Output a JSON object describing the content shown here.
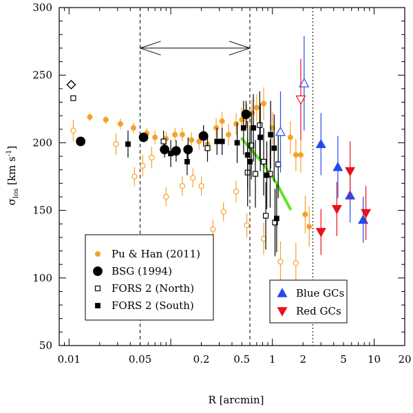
{
  "chart_data": {
    "type": "scatter",
    "xscale": "log",
    "xlim": [
      0.008,
      20
    ],
    "ylim": [
      50,
      300
    ],
    "xlabel": "R [arcmin]",
    "ylabel_main": "σ",
    "ylabel_sub": "los",
    "ylabel_units": "[km s",
    "ylabel_units_sup": "-1",
    "ylabel_units_end": "]",
    "x_ticks": [
      0.01,
      0.05,
      0.2,
      0.5,
      1,
      2,
      5,
      10,
      20
    ],
    "x_tick_labels": [
      "0.01",
      "0.05",
      "0.2",
      "0.5",
      "1",
      "2",
      "5",
      "10",
      "20"
    ],
    "y_ticks": [
      50,
      100,
      150,
      200,
      250,
      300
    ],
    "y_tick_labels": [
      "50",
      "100",
      "150",
      "200",
      "250",
      "300"
    ],
    "vlines": [
      0.05,
      0.6,
      2.5
    ],
    "arrow": {
      "from": 0.05,
      "to": 0.6,
      "y": 270
    },
    "series": [
      {
        "name": "Pu & Han (2011)",
        "marker": "circle",
        "size": "small",
        "filled": true,
        "color": "#f5a12a",
        "points": [
          {
            "x": 0.016,
            "y": 219,
            "err": 3
          },
          {
            "x": 0.023,
            "y": 217,
            "err": 3
          },
          {
            "x": 0.032,
            "y": 214,
            "err": 4
          },
          {
            "x": 0.043,
            "y": 211,
            "err": 4
          },
          {
            "x": 0.058,
            "y": 207,
            "err": 4
          },
          {
            "x": 0.07,
            "y": 204,
            "err": 5
          },
          {
            "x": 0.09,
            "y": 203,
            "err": 5
          },
          {
            "x": 0.11,
            "y": 206,
            "err": 5
          },
          {
            "x": 0.13,
            "y": 206,
            "err": 5
          },
          {
            "x": 0.16,
            "y": 202,
            "err": 6
          },
          {
            "x": 0.19,
            "y": 201,
            "err": 6
          },
          {
            "x": 0.23,
            "y": 199,
            "err": 6
          },
          {
            "x": 0.28,
            "y": 211,
            "err": 7
          },
          {
            "x": 0.32,
            "y": 216,
            "err": 7
          },
          {
            "x": 0.37,
            "y": 206,
            "err": 8
          },
          {
            "x": 0.44,
            "y": 214,
            "err": 8
          },
          {
            "x": 0.5,
            "y": 217,
            "err": 9
          },
          {
            "x": 0.56,
            "y": 220,
            "err": 9
          },
          {
            "x": 0.63,
            "y": 222,
            "err": 10
          },
          {
            "x": 0.7,
            "y": 226,
            "err": 10
          },
          {
            "x": 0.82,
            "y": 229,
            "err": 12
          },
          {
            "x": 1.0,
            "y": 211,
            "err": 12
          },
          {
            "x": 1.5,
            "y": 204,
            "err": 12
          },
          {
            "x": 1.7,
            "y": 191,
            "err": 12
          },
          {
            "x": 1.9,
            "y": 191,
            "err": 13
          },
          {
            "x": 2.1,
            "y": 147,
            "err": 14
          },
          {
            "x": 2.3,
            "y": 138,
            "err": 15
          }
        ]
      },
      {
        "name": "Pu & Han (2011) open",
        "marker": "circle",
        "size": "small",
        "filled": false,
        "color": "#f5a12a",
        "points": [
          {
            "x": 0.011,
            "y": 209,
            "err": 8
          },
          {
            "x": 0.029,
            "y": 199,
            "err": 8
          },
          {
            "x": 0.044,
            "y": 175,
            "err": 7
          },
          {
            "x": 0.053,
            "y": 183,
            "err": 8
          },
          {
            "x": 0.065,
            "y": 189,
            "err": 8
          },
          {
            "x": 0.09,
            "y": 160,
            "err": 7
          },
          {
            "x": 0.13,
            "y": 168,
            "err": 7
          },
          {
            "x": 0.165,
            "y": 174,
            "err": 7
          },
          {
            "x": 0.2,
            "y": 168,
            "err": 7
          },
          {
            "x": 0.26,
            "y": 136,
            "err": 7
          },
          {
            "x": 0.33,
            "y": 149,
            "err": 7
          },
          {
            "x": 0.44,
            "y": 164,
            "err": 8
          },
          {
            "x": 0.56,
            "y": 139,
            "err": 9
          },
          {
            "x": 0.82,
            "y": 129,
            "err": 12
          },
          {
            "x": 1.2,
            "y": 112,
            "err": 15
          },
          {
            "x": 1.7,
            "y": 111,
            "err": 15
          }
        ]
      },
      {
        "name": "BSG (1994)",
        "marker": "circle",
        "size": "large",
        "filled": true,
        "color": "#000000",
        "points": [
          {
            "x": 0.013,
            "y": 201,
            "err": 0
          },
          {
            "x": 0.054,
            "y": 204,
            "err": 0
          },
          {
            "x": 0.087,
            "y": 195,
            "err": 6
          },
          {
            "x": 0.113,
            "y": 194,
            "err": 8
          },
          {
            "x": 0.148,
            "y": 195,
            "err": 9
          },
          {
            "x": 0.21,
            "y": 205,
            "err": 8
          },
          {
            "x": 0.55,
            "y": 221,
            "err": 10
          }
        ]
      },
      {
        "name": "FORS 2 (North)",
        "marker": "square",
        "size": "small",
        "filled": false,
        "color": "#000000",
        "points": [
          {
            "x": 0.011,
            "y": 233,
            "err": 0
          },
          {
            "x": 0.085,
            "y": 201,
            "err": 8
          },
          {
            "x": 0.23,
            "y": 196,
            "err": 10
          },
          {
            "x": 0.57,
            "y": 178,
            "err": 25
          },
          {
            "x": 0.62,
            "y": 198,
            "err": 25
          },
          {
            "x": 0.68,
            "y": 177,
            "err": 25
          },
          {
            "x": 0.75,
            "y": 213,
            "err": 25
          },
          {
            "x": 0.82,
            "y": 186,
            "err": 25
          },
          {
            "x": 0.86,
            "y": 146,
            "err": 25
          },
          {
            "x": 0.95,
            "y": 177,
            "err": 25
          },
          {
            "x": 1.06,
            "y": 141,
            "err": 25
          },
          {
            "x": 1.14,
            "y": 184,
            "err": 25
          }
        ]
      },
      {
        "name": "FORS 2 (South)",
        "marker": "square",
        "size": "small",
        "filled": true,
        "color": "#000000",
        "points": [
          {
            "x": 0.038,
            "y": 199,
            "err": 10
          },
          {
            "x": 0.1,
            "y": 192,
            "err": 10
          },
          {
            "x": 0.145,
            "y": 186,
            "err": 10
          },
          {
            "x": 0.285,
            "y": 201,
            "err": 10
          },
          {
            "x": 0.32,
            "y": 201,
            "err": 10
          },
          {
            "x": 0.45,
            "y": 200,
            "err": 15
          },
          {
            "x": 0.52,
            "y": 211,
            "err": 20
          },
          {
            "x": 0.57,
            "y": 191,
            "err": 25
          },
          {
            "x": 0.6,
            "y": 186,
            "err": 25
          },
          {
            "x": 0.65,
            "y": 211,
            "err": 25
          },
          {
            "x": 0.76,
            "y": 204,
            "err": 25
          },
          {
            "x": 0.88,
            "y": 176,
            "err": 25
          },
          {
            "x": 0.96,
            "y": 206,
            "err": 25
          },
          {
            "x": 1.04,
            "y": 196,
            "err": 25
          },
          {
            "x": 1.1,
            "y": 144,
            "err": 25
          }
        ]
      },
      {
        "name": "Blue GCs",
        "marker": "triangle-up",
        "size": "medium",
        "filled": true,
        "color": "#2449f0",
        "points": [
          {
            "x": 3.0,
            "y": 199,
            "err": 23
          },
          {
            "x": 4.4,
            "y": 182,
            "err": 23
          },
          {
            "x": 5.8,
            "y": 161,
            "err": 20
          },
          {
            "x": 7.8,
            "y": 143,
            "err": 17
          }
        ]
      },
      {
        "name": "Blue GCs open",
        "marker": "triangle-up",
        "size": "medium",
        "filled": false,
        "color": "#2449f0",
        "points": [
          {
            "x": 1.2,
            "y": 208,
            "err": 30
          },
          {
            "x": 2.05,
            "y": 244,
            "err": 35
          }
        ]
      },
      {
        "name": "Red GCs",
        "marker": "triangle-down",
        "size": "medium",
        "filled": true,
        "color": "#e8101a",
        "points": [
          {
            "x": 3.0,
            "y": 134,
            "err": 17
          },
          {
            "x": 4.3,
            "y": 151,
            "err": 20
          },
          {
            "x": 5.8,
            "y": 179,
            "err": 22
          },
          {
            "x": 8.3,
            "y": 148,
            "err": 20
          }
        ]
      },
      {
        "name": "Red GCs open",
        "marker": "triangle-down",
        "size": "medium",
        "filled": false,
        "color": "#e8101a",
        "points": [
          {
            "x": 1.9,
            "y": 232,
            "err": 30
          }
        ]
      },
      {
        "name": "BSG center",
        "marker": "diamond",
        "size": "medium",
        "filled": false,
        "color": "#000000",
        "points": [
          {
            "x": 0.0105,
            "y": 243,
            "err": 0
          }
        ]
      }
    ],
    "model_line": {
      "color": "#5fe61e",
      "points": [
        {
          "x": 0.5,
          "y": 203
        },
        {
          "x": 0.8,
          "y": 185
        },
        {
          "x": 1.1,
          "y": 170
        },
        {
          "x": 1.5,
          "y": 151
        }
      ]
    },
    "legend_left": [
      {
        "label": "Pu & Han (2011)",
        "marker": "circle",
        "size": "small",
        "filled": true,
        "color": "#f5a12a"
      },
      {
        "label": "BSG (1994)",
        "marker": "circle",
        "size": "large",
        "filled": true,
        "color": "#000000"
      },
      {
        "label": "FORS 2 (North)",
        "marker": "square",
        "size": "small",
        "filled": false,
        "color": "#000000"
      },
      {
        "label": "FORS 2 (South)",
        "marker": "square",
        "size": "small",
        "filled": true,
        "color": "#000000"
      }
    ],
    "legend_right": [
      {
        "label": "Blue GCs",
        "marker": "triangle-up",
        "size": "medium",
        "filled": true,
        "color": "#2449f0"
      },
      {
        "label": "Red GCs",
        "marker": "triangle-down",
        "size": "medium",
        "filled": true,
        "color": "#e8101a"
      }
    ]
  }
}
